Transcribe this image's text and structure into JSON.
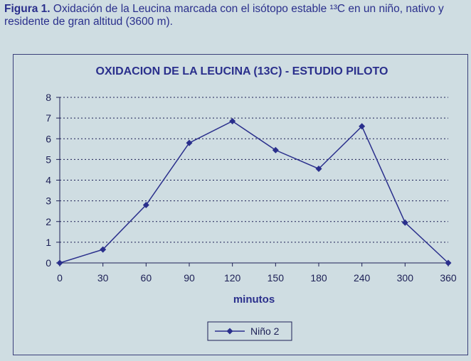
{
  "caption": {
    "label": "Figura 1.",
    "text": "Oxidación de la Leucina marcada con  el isótopo estable ¹³C  en un niño, nativo y residente de gran altitud (3600 m)."
  },
  "chart_data": {
    "type": "line",
    "title": "OXIDACION DE LA LEUCINA (13C) - ESTUDIO PILOTO",
    "xlabel": "minutos",
    "ylabel": "",
    "categories": [
      "0",
      "30",
      "60",
      "90",
      "120",
      "150",
      "180",
      "240",
      "300",
      "360"
    ],
    "ylim": [
      0,
      8
    ],
    "yticks": [
      0,
      1,
      2,
      3,
      4,
      5,
      6,
      7,
      8
    ],
    "grid": "horizontal dotted",
    "legend_position": "bottom",
    "series": [
      {
        "name": "Niño 2",
        "values": [
          0,
          0.65,
          2.8,
          5.8,
          6.85,
          5.45,
          4.55,
          6.6,
          1.95,
          0
        ],
        "color": "#2a2f8c",
        "marker": "diamond"
      }
    ]
  }
}
